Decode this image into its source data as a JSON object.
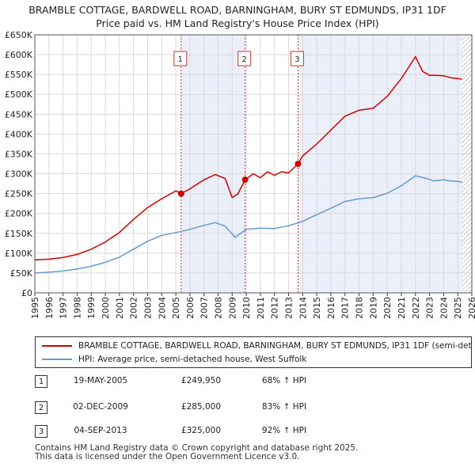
{
  "title_line1": "BRAMBLE COTTAGE, BARDWELL ROAD, BARNINGHAM, BURY ST EDMUNDS, IP31 1DF",
  "title_line2": "Price paid vs. HM Land Registry's House Price Index (HPI)",
  "chart_data": {
    "type": "line",
    "title": "BRAMBLE COTTAGE, BARDWELL ROAD, BARNINGHAM, BURY ST EDMUNDS, IP31 1DF — Price paid vs. HM Land Registry's House Price Index (HPI)",
    "xlabel": "",
    "ylabel": "",
    "xlim": [
      1995,
      2026
    ],
    "ylim": [
      0,
      650000
    ],
    "y_ticks": [
      0,
      50000,
      100000,
      150000,
      200000,
      250000,
      300000,
      350000,
      400000,
      450000,
      500000,
      550000,
      600000,
      650000
    ],
    "y_tick_labels": [
      "£0",
      "£50K",
      "£100K",
      "£150K",
      "£200K",
      "£250K",
      "£300K",
      "£350K",
      "£400K",
      "£450K",
      "£500K",
      "£550K",
      "£600K",
      "£650K"
    ],
    "x_ticks": [
      1995,
      1996,
      1997,
      1998,
      1999,
      2000,
      2001,
      2002,
      2003,
      2004,
      2005,
      2006,
      2007,
      2008,
      2009,
      2010,
      2011,
      2012,
      2013,
      2014,
      2015,
      2016,
      2017,
      2018,
      2019,
      2020,
      2021,
      2022,
      2023,
      2024,
      2025,
      2026
    ],
    "grid": true,
    "series": [
      {
        "name": "BRAMBLE COTTAGE, BARDWELL ROAD, BARNINGHAM, BURY ST EDMUNDS, IP31 1DF (semi-detached house)",
        "color": "#cc0000",
        "x": [
          1995.0,
          1996.0,
          1997.0,
          1998.0,
          1999.0,
          2000.0,
          2001.0,
          2002.0,
          2003.0,
          2004.0,
          2005.0,
          2005.38,
          2006.0,
          2007.0,
          2007.8,
          2008.5,
          2009.0,
          2009.4,
          2009.92,
          2010.5,
          2011.0,
          2011.5,
          2012.0,
          2012.5,
          2013.0,
          2013.67,
          2014.0,
          2015.0,
          2016.0,
          2017.0,
          2018.0,
          2019.0,
          2020.0,
          2021.0,
          2022.0,
          2022.5,
          2023.0,
          2023.5,
          2024.0,
          2024.5,
          2025.0,
          2025.3
        ],
        "values": [
          83000,
          85000,
          89000,
          97000,
          110000,
          128000,
          152000,
          185000,
          215000,
          237000,
          257000,
          249950,
          262000,
          285000,
          298000,
          288000,
          240000,
          249000,
          285000,
          300000,
          290000,
          305000,
          296000,
          305000,
          302000,
          325000,
          345000,
          375000,
          410000,
          445000,
          460000,
          465000,
          495000,
          540000,
          595000,
          558000,
          548000,
          548000,
          547000,
          542000,
          540000,
          538000
        ]
      },
      {
        "name": "HPI: Average price, semi-detached house, West Suffolk",
        "color": "#6699cc",
        "x": [
          1995.0,
          1996.0,
          1997.0,
          1998.0,
          1999.0,
          2000.0,
          2001.0,
          2002.0,
          2003.0,
          2004.0,
          2005.0,
          2006.0,
          2007.0,
          2007.8,
          2008.5,
          2009.2,
          2010.0,
          2011.0,
          2012.0,
          2013.0,
          2014.0,
          2015.0,
          2016.0,
          2017.0,
          2018.0,
          2019.0,
          2020.0,
          2021.0,
          2022.0,
          2022.8,
          2023.3,
          2024.0,
          2024.5,
          2025.0,
          2025.3
        ],
        "values": [
          50000,
          52000,
          55000,
          60000,
          67000,
          77000,
          90000,
          110000,
          130000,
          145000,
          152000,
          160000,
          170000,
          177000,
          168000,
          140000,
          160000,
          163000,
          162000,
          169000,
          180000,
          197000,
          213000,
          230000,
          237000,
          240000,
          251000,
          270000,
          295000,
          288000,
          282000,
          285000,
          282000,
          281000,
          279000
        ]
      }
    ],
    "sales": [
      {
        "label": "1",
        "x": 2005.38,
        "value": 249950
      },
      {
        "label": "2",
        "x": 2009.92,
        "value": 285000
      },
      {
        "label": "3",
        "x": 2013.67,
        "value": 325000
      }
    ],
    "shaded_ranges": [
      [
        2005.38,
        2009.92
      ],
      [
        2013.67,
        2025.3
      ]
    ],
    "hatched_from": 2025.3
  },
  "legend": {
    "red_label": "BRAMBLE COTTAGE, BARDWELL ROAD, BARNINGHAM, BURY ST EDMUNDS, IP31 1DF (semi-detached house)",
    "blue_label": "HPI: Average price, semi-detached house, West Suffolk",
    "red_color": "#cc0000",
    "blue_color": "#6699cc"
  },
  "sales_table": [
    {
      "num": "1",
      "date": "19-MAY-2005",
      "price": "£249,950",
      "hpi": "68% ↑ HPI"
    },
    {
      "num": "2",
      "date": "02-DEC-2009",
      "price": "£285,000",
      "hpi": "83% ↑ HPI"
    },
    {
      "num": "3",
      "date": "04-SEP-2013",
      "price": "£325,000",
      "hpi": "92% ↑ HPI"
    }
  ],
  "footer_line1": "Contains HM Land Registry data © Crown copyright and database right 2025.",
  "footer_line2": "This data is licensed under the Open Government Licence v3.0."
}
